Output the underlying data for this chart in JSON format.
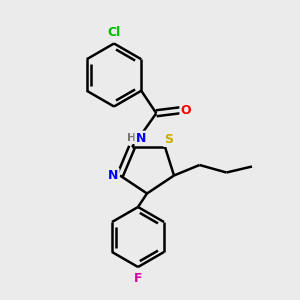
{
  "bg_color": "#ebebeb",
  "bond_color": "#000000",
  "bond_width": 1.8,
  "atom_colors": {
    "C": "#000000",
    "N": "#0000ff",
    "O": "#ff0000",
    "S": "#ccaa00",
    "Cl": "#00bb00",
    "F": "#dd00aa",
    "H": "#777777"
  },
  "font_size": 9,
  "title": ""
}
